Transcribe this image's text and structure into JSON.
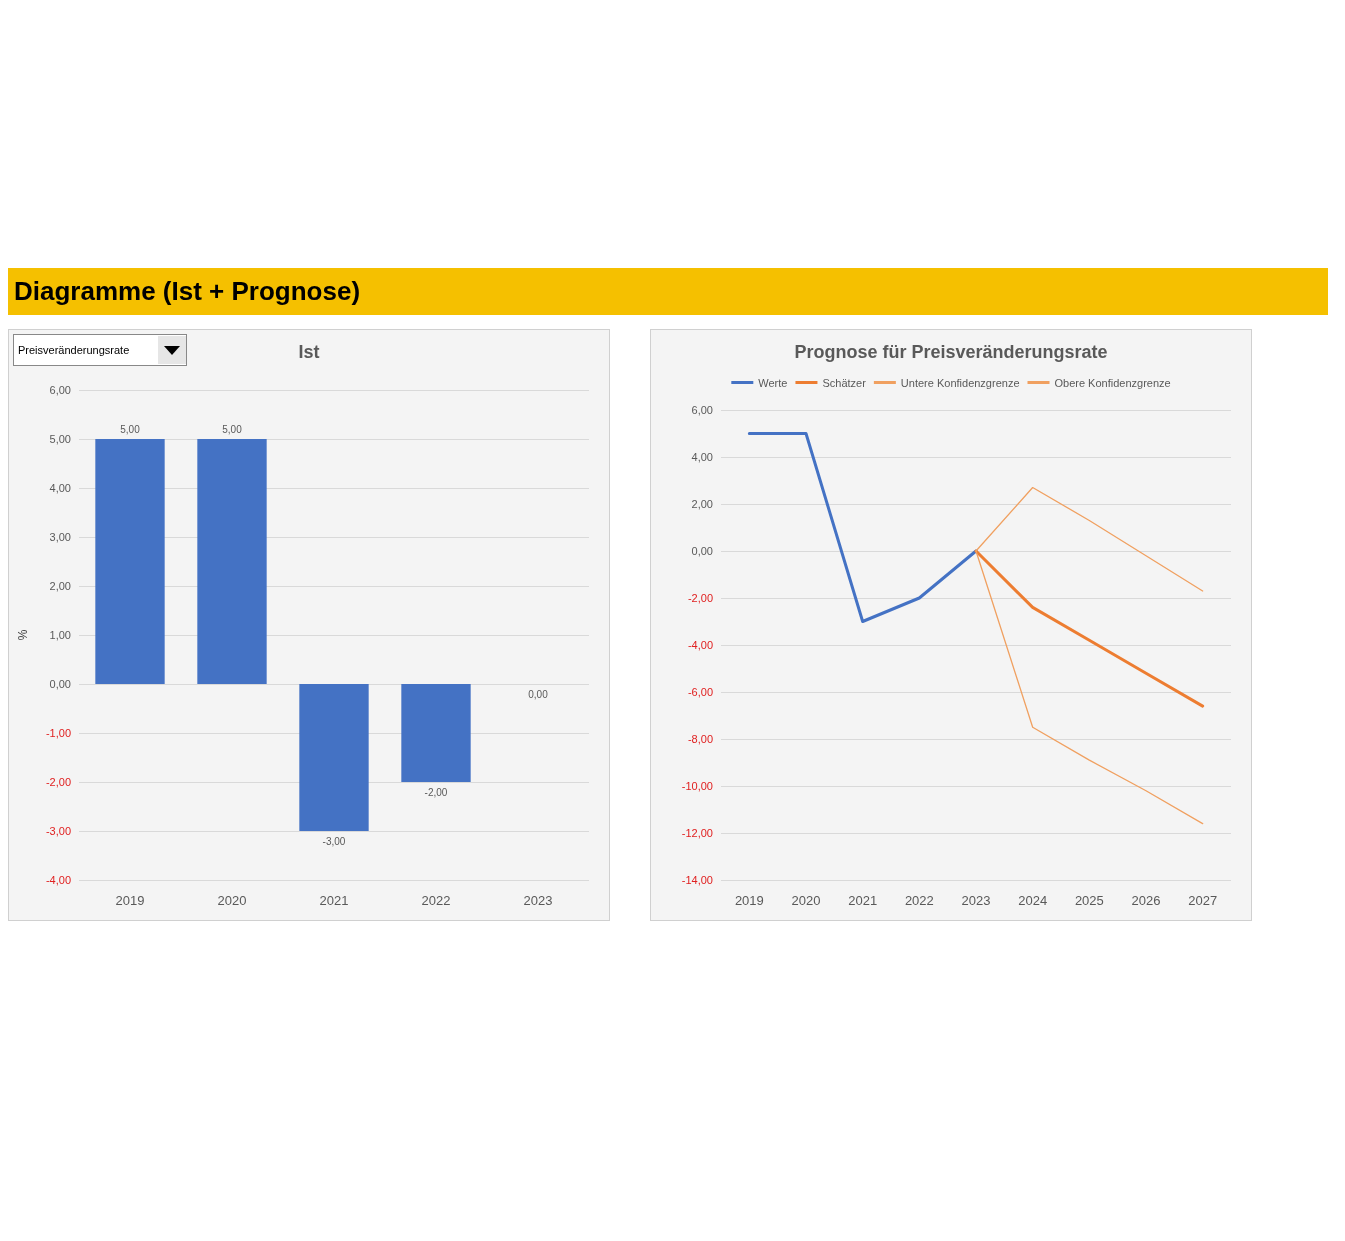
{
  "chart_data": [
    {
      "type": "bar",
      "title": "Ist",
      "ylabel": "%",
      "annotations": [
        "Diagramme (Ist + Prognose)",
        "Preisveränderungsrate"
      ],
      "categories": [
        "2019",
        "2020",
        "2021",
        "2022",
        "2023"
      ],
      "series": [
        {
          "color": "#4472c4",
          "values": [
            5,
            5,
            -3,
            -2,
            0
          ],
          "value_labels": [
            "5,00",
            "5,00",
            "-3,00",
            "-2,00",
            "0,00"
          ]
        }
      ],
      "ylim": [
        -4,
        6
      ],
      "yticks": [
        {
          "value": -4,
          "label": "-4,00"
        },
        {
          "value": -3,
          "label": "-3,00"
        },
        {
          "value": -2,
          "label": "-2,00"
        },
        {
          "value": -1,
          "label": "-1,00"
        },
        {
          "value": 0,
          "label": "0,00"
        },
        {
          "value": 1,
          "label": "1,00"
        },
        {
          "value": 2,
          "label": "2,00"
        },
        {
          "value": 3,
          "label": "3,00"
        },
        {
          "value": 4,
          "label": "4,00"
        },
        {
          "value": 5,
          "label": "5,00"
        },
        {
          "value": 6,
          "label": "6,00"
        }
      ],
      "grid": "y",
      "legend": false
    },
    {
      "type": "line",
      "title": "Prognose für Preisveränderungsrate",
      "categories": [
        "2019",
        "2020",
        "2021",
        "2022",
        "2023",
        "2024",
        "2025",
        "2026",
        "2027"
      ],
      "series": [
        {
          "name": "Werte",
          "color": "#4472c4",
          "values": [
            5,
            5,
            -3,
            -2,
            0,
            null,
            null,
            null,
            null
          ]
        },
        {
          "name": "Schätzer",
          "color": "#ed7d31",
          "values": [
            null,
            null,
            null,
            null,
            0,
            -2.4,
            -3.8,
            -5.2,
            -6.6
          ]
        },
        {
          "name": "Untere Konfidenzgrenze",
          "color": "#f0a060",
          "values": [
            null,
            null,
            null,
            null,
            0,
            -7.5,
            -8.9,
            -10.2,
            -11.6
          ]
        },
        {
          "name": "Obere Konfidenzgrenze",
          "color": "#f0a060",
          "values": [
            null,
            null,
            null,
            null,
            0,
            2.7,
            1.3,
            -0.2,
            -1.7
          ]
        }
      ],
      "ylim": [
        -14,
        6
      ],
      "yticks": [
        {
          "value": -14,
          "label": "-14,00"
        },
        {
          "value": -12,
          "label": "-12,00"
        },
        {
          "value": -10,
          "label": "-10,00"
        },
        {
          "value": -8,
          "label": "-8,00"
        },
        {
          "value": -6,
          "label": "-6,00"
        },
        {
          "value": -4,
          "label": "-4,00"
        },
        {
          "value": -2,
          "label": "-2,00"
        },
        {
          "value": 0,
          "label": "0,00"
        },
        {
          "value": 2,
          "label": "2,00"
        },
        {
          "value": 4,
          "label": "4,00"
        },
        {
          "value": 6,
          "label": "6,00"
        }
      ],
      "grid": "y",
      "legend": "top",
      "marker": "none",
      "line_style": "solid"
    }
  ]
}
